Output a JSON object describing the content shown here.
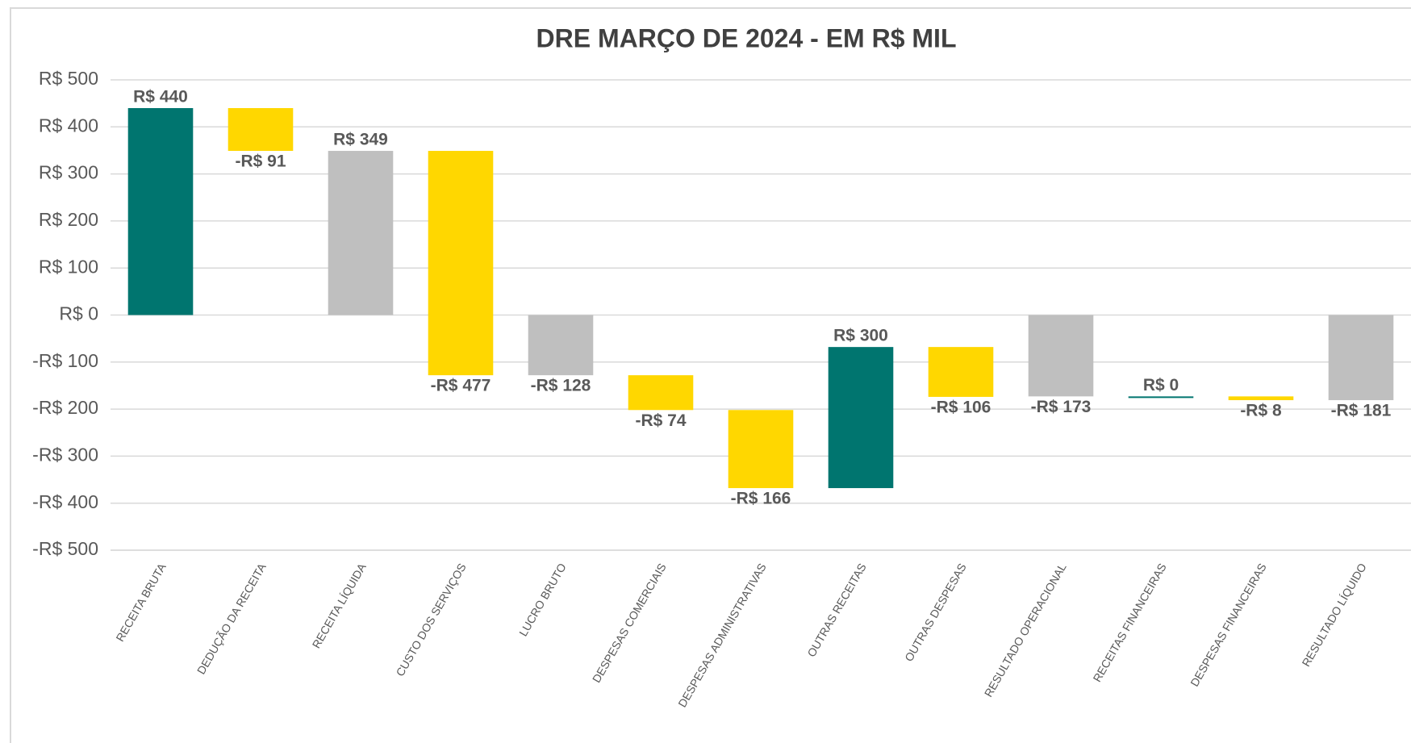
{
  "chart_data": {
    "type": "waterfall",
    "title": "DRE MARÇO DE 2024 - EM R$ MIL",
    "categories": [
      "RECEITA BRUTA",
      "DEDUÇÃO DA RECEITA",
      "RECEITA LÍQUIDA",
      "CUSTO DOS SERVIÇOS",
      "LUCRO BRUTO",
      "DESPESAS COMERCIAIS",
      "DESPESAS ADMINISTRATIVAS",
      "OUTRAS RECEITAS",
      "OUTRAS DESPESAS",
      "RESULTADO OPERACIONAL",
      "RECEITAS FINANCEIRAS",
      "DESPESAS FINANCEIRAS",
      "RESULTADO LÍQUIDO"
    ],
    "values": [
      440,
      -91,
      349,
      -477,
      -128,
      -74,
      -166,
      300,
      -106,
      -173,
      0,
      -8,
      -181
    ],
    "value_labels": [
      "R$ 440",
      "-R$ 91",
      "R$ 349",
      "-R$ 477",
      "-R$ 128",
      "-R$ 74",
      "-R$ 166",
      "R$ 300",
      "-R$ 106",
      "-R$ 173",
      "R$ 0",
      "-R$ 8",
      "-R$ 181"
    ],
    "totals": [
      2,
      4,
      9,
      12
    ],
    "colors": {
      "increase": "#00756F",
      "decrease": "#FFD700",
      "total": "#BFBFBF"
    },
    "ylim": [
      -500,
      500
    ],
    "yticks": [
      {
        "value": -500,
        "label": "-R$ 500"
      },
      {
        "value": -400,
        "label": "-R$ 400"
      },
      {
        "value": -300,
        "label": "-R$ 300"
      },
      {
        "value": -200,
        "label": "-R$ 200"
      },
      {
        "value": -100,
        "label": "-R$ 100"
      },
      {
        "value": 0,
        "label": "R$ 0"
      },
      {
        "value": 100,
        "label": "R$ 100"
      },
      {
        "value": 200,
        "label": "R$ 200"
      },
      {
        "value": 300,
        "label": "R$ 300"
      },
      {
        "value": 400,
        "label": "R$ 400"
      },
      {
        "value": 500,
        "label": "R$ 500"
      }
    ],
    "grid": true
  }
}
